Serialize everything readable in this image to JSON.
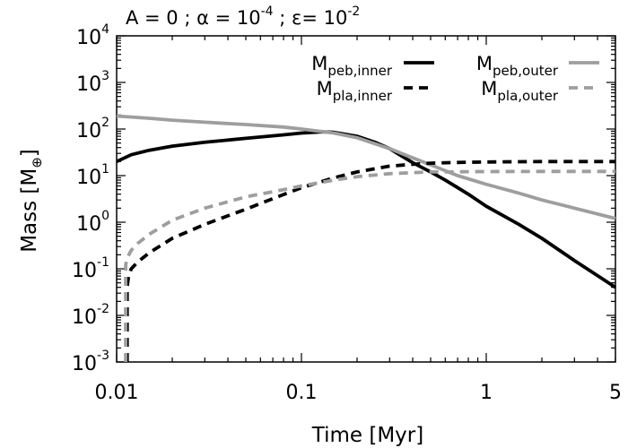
{
  "chart_data": {
    "type": "line",
    "title": {
      "parts": [
        {
          "text": "A = 0 ; α = 10",
          "style": "normal"
        },
        {
          "text": "-4",
          "style": "sup"
        },
        {
          "text": " ;  ε= 10",
          "style": "normal"
        },
        {
          "text": "-2",
          "style": "sup"
        }
      ]
    },
    "xlabel": "Time [Myr]",
    "ylabel": {
      "main": "Mass [M",
      "sub": "⊕",
      "close": "]"
    },
    "xscale": "log",
    "yscale": "log",
    "xlim": [
      0.01,
      5
    ],
    "ylim": [
      0.001,
      10000
    ],
    "xticks": [
      {
        "value": 0.01,
        "label": "0.01"
      },
      {
        "value": 0.1,
        "label": "0.1"
      },
      {
        "value": 1,
        "label": "1"
      },
      {
        "value": 5,
        "label": "5"
      }
    ],
    "yticks": [
      {
        "value": 0.001,
        "base": "10",
        "exp": "-3"
      },
      {
        "value": 0.01,
        "base": "10",
        "exp": "-2"
      },
      {
        "value": 0.1,
        "base": "10",
        "exp": "-1"
      },
      {
        "value": 1,
        "base": "10",
        "exp": "0"
      },
      {
        "value": 10,
        "base": "10",
        "exp": "1"
      },
      {
        "value": 100,
        "base": "10",
        "exp": "2"
      },
      {
        "value": 1000,
        "base": "10",
        "exp": "3"
      },
      {
        "value": 10000,
        "base": "10",
        "exp": "4"
      }
    ],
    "legend_position": "top-right",
    "series": [
      {
        "name": "M_peb,inner",
        "label_main": "M",
        "label_sub": "peb,inner",
        "color": "#000000",
        "dashed": false,
        "x": [
          0.01,
          0.012,
          0.015,
          0.02,
          0.03,
          0.05,
          0.08,
          0.1,
          0.13,
          0.15,
          0.2,
          0.25,
          0.3,
          0.35,
          0.4,
          0.5,
          0.6,
          0.8,
          1,
          1.5,
          2,
          3,
          5
        ],
        "y": [
          20,
          28,
          35,
          43,
          52,
          63,
          75,
          82,
          87,
          85,
          70,
          52,
          38,
          26,
          19,
          12,
          8,
          4,
          2.2,
          0.9,
          0.45,
          0.15,
          0.04
        ]
      },
      {
        "name": "M_peb,outer",
        "label_main": "M",
        "label_sub": "peb,outer",
        "color": "#9e9e9e",
        "dashed": false,
        "x": [
          0.01,
          0.015,
          0.02,
          0.03,
          0.05,
          0.08,
          0.1,
          0.15,
          0.2,
          0.3,
          0.4,
          0.5,
          0.7,
          1,
          1.5,
          2,
          3,
          5
        ],
        "y": [
          190,
          170,
          155,
          140,
          125,
          110,
          100,
          82,
          65,
          38,
          24,
          17,
          10,
          6.5,
          4.2,
          3,
          2,
          1.2
        ]
      },
      {
        "name": "M_pla,inner",
        "label_main": "M",
        "label_sub": "pla,inner",
        "color": "#000000",
        "dashed": true,
        "x": [
          0.0114,
          0.0114,
          0.0116,
          0.012,
          0.013,
          0.015,
          0.02,
          0.03,
          0.05,
          0.07,
          0.1,
          0.15,
          0.2,
          0.3,
          0.4,
          0.5,
          0.7,
          1,
          2,
          5
        ],
        "y": [
          0.001,
          0.04,
          0.07,
          0.1,
          0.14,
          0.22,
          0.45,
          0.9,
          1.9,
          3.2,
          5.5,
          9,
          12,
          16,
          17.5,
          18.5,
          19.2,
          19.6,
          20,
          20
        ]
      },
      {
        "name": "M_pla,outer",
        "label_main": "M",
        "label_sub": "pla,outer",
        "color": "#9e9e9e",
        "dashed": true,
        "x": [
          0.0112,
          0.0112,
          0.0114,
          0.012,
          0.013,
          0.015,
          0.02,
          0.03,
          0.05,
          0.08,
          0.1,
          0.15,
          0.2,
          0.3,
          0.5,
          1,
          2,
          5
        ],
        "y": [
          0.001,
          0.12,
          0.17,
          0.25,
          0.35,
          0.55,
          1.1,
          2,
          3.5,
          5,
          6,
          8,
          9.5,
          11,
          12,
          12.2,
          12.3,
          12.3
        ]
      }
    ]
  }
}
